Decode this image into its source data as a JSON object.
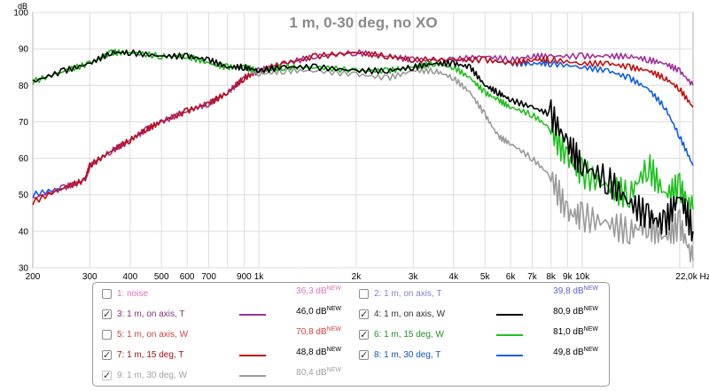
{
  "chart_data": {
    "type": "line",
    "title": "1 m, 0-30 deg, no XO",
    "ylabel": "dB",
    "xlabel": "Hz",
    "xscale": "log",
    "xlim": [
      200,
      22000
    ],
    "ylim": [
      30,
      100
    ],
    "y_ticks": [
      30,
      40,
      50,
      60,
      70,
      80,
      90,
      100
    ],
    "x_ticks": [
      {
        "v": 200,
        "label": "200"
      },
      {
        "v": 300,
        "label": "300"
      },
      {
        "v": 400,
        "label": "400"
      },
      {
        "v": 500,
        "label": "500"
      },
      {
        "v": 600,
        "label": "600"
      },
      {
        "v": 700,
        "label": "700"
      },
      {
        "v": 900,
        "label": "900"
      },
      {
        "v": 1000,
        "label": "1k"
      },
      {
        "v": 2000,
        "label": "2k"
      },
      {
        "v": 3000,
        "label": "3k"
      },
      {
        "v": 4000,
        "label": "4k"
      },
      {
        "v": 5000,
        "label": "5k"
      },
      {
        "v": 6000,
        "label": "6k"
      },
      {
        "v": 7000,
        "label": "7k"
      },
      {
        "v": 8000,
        "label": "8k"
      },
      {
        "v": 9000,
        "label": "9k"
      },
      {
        "v": 10000,
        "label": "10k"
      },
      {
        "v": 22000,
        "label": "22,0k Hz"
      }
    ],
    "grid": true,
    "legend_position": "bottom",
    "series": [
      {
        "id": "tw-30",
        "color": "#1060e8",
        "points": [
          [
            200,
            50
          ],
          [
            250,
            52
          ],
          [
            290,
            54
          ],
          [
            300,
            58
          ],
          [
            350,
            62
          ],
          [
            400,
            65
          ],
          [
            450,
            68
          ],
          [
            500,
            70
          ],
          [
            600,
            73
          ],
          [
            700,
            75
          ],
          [
            800,
            78
          ],
          [
            900,
            82
          ],
          [
            1000,
            84
          ],
          [
            1200,
            86
          ],
          [
            1500,
            88
          ],
          [
            2000,
            89
          ],
          [
            2500,
            88
          ],
          [
            3000,
            87
          ],
          [
            4000,
            87
          ],
          [
            5000,
            87
          ],
          [
            6000,
            86
          ],
          [
            7000,
            86
          ],
          [
            8000,
            86
          ],
          [
            10000,
            85
          ],
          [
            12000,
            84
          ],
          [
            14000,
            82
          ],
          [
            16000,
            79
          ],
          [
            18000,
            74
          ],
          [
            20000,
            66
          ],
          [
            22000,
            58
          ]
        ]
      },
      {
        "id": "tw-axis",
        "color": "#a0309a",
        "points": [
          [
            200,
            49
          ],
          [
            250,
            52
          ],
          [
            290,
            54
          ],
          [
            300,
            58
          ],
          [
            350,
            62
          ],
          [
            400,
            65
          ],
          [
            450,
            68
          ],
          [
            500,
            70
          ],
          [
            600,
            73
          ],
          [
            700,
            75
          ],
          [
            800,
            78
          ],
          [
            900,
            82
          ],
          [
            1000,
            84
          ],
          [
            1200,
            86
          ],
          [
            1500,
            88
          ],
          [
            2000,
            89
          ],
          [
            2500,
            88
          ],
          [
            3000,
            87
          ],
          [
            4000,
            87
          ],
          [
            5000,
            88
          ],
          [
            6000,
            87
          ],
          [
            7000,
            88
          ],
          [
            8000,
            88
          ],
          [
            10000,
            88
          ],
          [
            12000,
            88
          ],
          [
            14000,
            88
          ],
          [
            16000,
            87
          ],
          [
            18000,
            86
          ],
          [
            20000,
            84
          ],
          [
            22000,
            80
          ]
        ]
      },
      {
        "id": "tw-15",
        "color": "#c01010",
        "points": [
          [
            200,
            48
          ],
          [
            250,
            52
          ],
          [
            290,
            54
          ],
          [
            300,
            58
          ],
          [
            350,
            62
          ],
          [
            400,
            65
          ],
          [
            450,
            68
          ],
          [
            500,
            70
          ],
          [
            600,
            73
          ],
          [
            700,
            75
          ],
          [
            800,
            78
          ],
          [
            900,
            82
          ],
          [
            1000,
            84
          ],
          [
            1200,
            86
          ],
          [
            1500,
            88
          ],
          [
            2000,
            89
          ],
          [
            2500,
            88
          ],
          [
            3000,
            87
          ],
          [
            4000,
            87
          ],
          [
            5000,
            87
          ],
          [
            6000,
            86
          ],
          [
            7000,
            87
          ],
          [
            8000,
            87
          ],
          [
            10000,
            86
          ],
          [
            12000,
            86
          ],
          [
            14000,
            85
          ],
          [
            16000,
            84
          ],
          [
            18000,
            82
          ],
          [
            20000,
            79
          ],
          [
            22000,
            74
          ]
        ]
      },
      {
        "id": "wf-30",
        "color": "#9a9a9a",
        "points": [
          [
            200,
            81
          ],
          [
            250,
            84
          ],
          [
            300,
            86
          ],
          [
            350,
            89
          ],
          [
            400,
            89
          ],
          [
            500,
            88
          ],
          [
            600,
            88
          ],
          [
            700,
            86
          ],
          [
            800,
            85
          ],
          [
            900,
            85
          ],
          [
            1000,
            83
          ],
          [
            1200,
            84
          ],
          [
            1500,
            84
          ],
          [
            2000,
            83
          ],
          [
            2500,
            82
          ],
          [
            3000,
            84
          ],
          [
            3500,
            84
          ],
          [
            4000,
            82
          ],
          [
            4500,
            78
          ],
          [
            5000,
            72
          ],
          [
            5500,
            66
          ],
          [
            6000,
            64
          ],
          [
            7000,
            60
          ],
          [
            8000,
            55
          ],
          [
            9000,
            45
          ],
          [
            10000,
            44
          ],
          [
            12000,
            42
          ],
          [
            14000,
            40
          ],
          [
            16000,
            42
          ],
          [
            18000,
            38
          ],
          [
            20000,
            42
          ],
          [
            22000,
            32
          ]
        ]
      },
      {
        "id": "wf-15",
        "color": "#20c020",
        "points": [
          [
            200,
            81
          ],
          [
            250,
            84
          ],
          [
            300,
            86
          ],
          [
            350,
            89
          ],
          [
            400,
            89
          ],
          [
            500,
            88
          ],
          [
            600,
            88
          ],
          [
            700,
            86
          ],
          [
            800,
            85
          ],
          [
            900,
            85
          ],
          [
            1000,
            84
          ],
          [
            1200,
            85
          ],
          [
            1500,
            85
          ],
          [
            2000,
            84
          ],
          [
            2500,
            84
          ],
          [
            3000,
            85
          ],
          [
            3500,
            86
          ],
          [
            4000,
            85
          ],
          [
            4500,
            82
          ],
          [
            5000,
            78
          ],
          [
            5500,
            76
          ],
          [
            6000,
            74
          ],
          [
            7000,
            72
          ],
          [
            8000,
            68
          ],
          [
            9000,
            60
          ],
          [
            10000,
            56
          ],
          [
            12000,
            52
          ],
          [
            14000,
            50
          ],
          [
            16000,
            58
          ],
          [
            18000,
            50
          ],
          [
            20000,
            52
          ],
          [
            22000,
            46
          ]
        ]
      },
      {
        "id": "wf-axis",
        "color": "#000000",
        "points": [
          [
            200,
            81
          ],
          [
            250,
            84
          ],
          [
            300,
            86
          ],
          [
            350,
            89
          ],
          [
            400,
            89
          ],
          [
            500,
            88
          ],
          [
            600,
            88
          ],
          [
            700,
            87
          ],
          [
            800,
            85
          ],
          [
            900,
            85
          ],
          [
            1000,
            84
          ],
          [
            1200,
            85
          ],
          [
            1500,
            85
          ],
          [
            2000,
            84
          ],
          [
            2500,
            84
          ],
          [
            3000,
            85
          ],
          [
            3500,
            86
          ],
          [
            4000,
            86
          ],
          [
            4500,
            85
          ],
          [
            5000,
            80
          ],
          [
            5500,
            78
          ],
          [
            6000,
            76
          ],
          [
            7000,
            74
          ],
          [
            8000,
            72
          ],
          [
            9000,
            64
          ],
          [
            10000,
            58
          ],
          [
            12000,
            54
          ],
          [
            14000,
            48
          ],
          [
            16000,
            44
          ],
          [
            18000,
            42
          ],
          [
            20000,
            50
          ],
          [
            22000,
            40
          ]
        ]
      }
    ]
  },
  "legend": [
    {
      "checked": false,
      "label": "1: noise",
      "value": "36,3 dB",
      "sup": "NEW",
      "label_color": "#e070c0",
      "value_color": "#e070c0",
      "swatch": "",
      "enabled": true
    },
    {
      "checked": false,
      "label": "2: 1 m, on axis, T",
      "value": "39,8 dB",
      "sup": "NEW",
      "label_color": "#8080d0",
      "value_color": "#6060d0",
      "swatch": "",
      "enabled": true
    },
    {
      "checked": true,
      "label": "3: 1 m, on axis, T",
      "value": "46,0 dB",
      "sup": "NEW",
      "label_color": "#803080",
      "value_color": "#000000",
      "swatch": "#a0309a",
      "enabled": true
    },
    {
      "checked": true,
      "label": "4: 1 m, on axis, W",
      "value": "80,9 dB",
      "sup": "NEW",
      "label_color": "#303030",
      "value_color": "#000000",
      "swatch": "#000000",
      "enabled": true
    },
    {
      "checked": false,
      "label": "5: 1 m, on axis, W",
      "value": "70,8 dB",
      "sup": "NEW",
      "label_color": "#d04040",
      "value_color": "#d04040",
      "swatch": "",
      "enabled": true
    },
    {
      "checked": true,
      "label": "6: 1 m, 15 deg, W",
      "value": "81,0 dB",
      "sup": "NEW",
      "label_color": "#209020",
      "value_color": "#000000",
      "swatch": "#20c020",
      "enabled": true
    },
    {
      "checked": true,
      "label": "7: 1 m, 15 deg, T",
      "value": "48,8 dB",
      "sup": "NEW",
      "label_color": "#a01010",
      "value_color": "#000000",
      "swatch": "#c01010",
      "enabled": true
    },
    {
      "checked": true,
      "label": "8: 1 m, 30 deg, T",
      "value": "49,8 dB",
      "sup": "NEW",
      "label_color": "#1050c0",
      "value_color": "#000000",
      "swatch": "#1060e8",
      "enabled": true
    },
    {
      "checked": true,
      "label": "9: 1 m, 30 deg, W",
      "value": "80,4 dB",
      "sup": "NEW",
      "label_color": "#a0a0a0",
      "value_color": "#a0a0a0",
      "swatch": "#9a9a9a",
      "enabled": false
    }
  ],
  "colors": {
    "plot_bg": "#ffffff",
    "grid": "#dcdcdc",
    "axis_text": "#000000",
    "title": "#8a8a8a"
  }
}
